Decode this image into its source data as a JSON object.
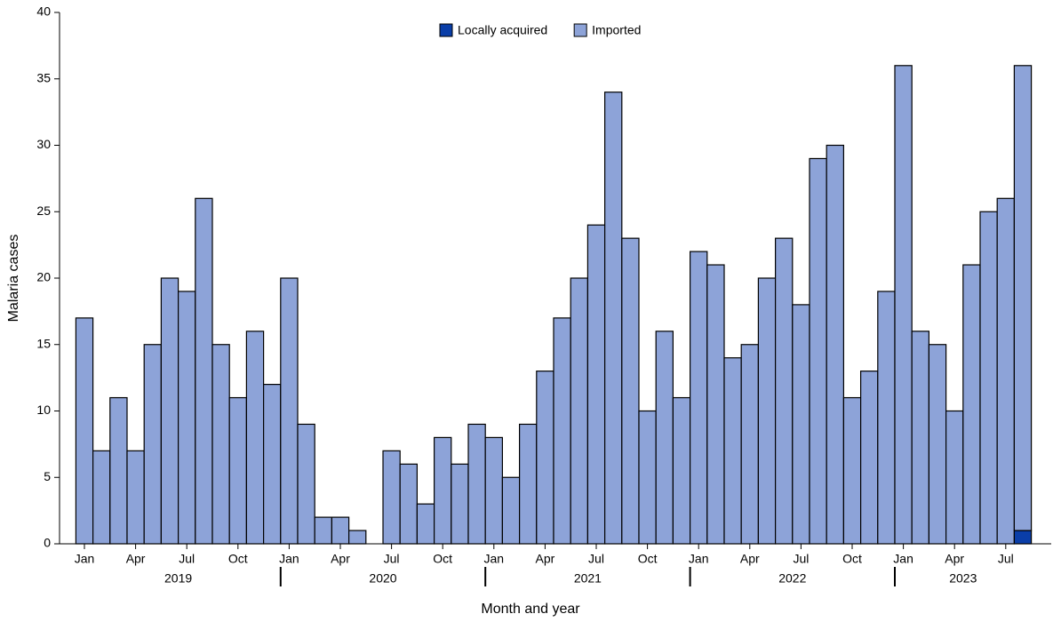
{
  "chart_data": {
    "type": "stacked-bar",
    "xlabel": "Month and year",
    "ylabel": "Malaria cases",
    "categories": [
      "Jan",
      null,
      null,
      "Apr",
      null,
      null,
      "Jul",
      null,
      null,
      "Oct",
      null,
      null,
      "Jan",
      null,
      null,
      "Apr",
      null,
      null,
      "Jul",
      null,
      null,
      "Oct",
      null,
      null,
      "Jan",
      null,
      null,
      "Apr",
      null,
      null,
      "Jul",
      null,
      null,
      "Oct",
      null,
      null,
      "Jan",
      null,
      null,
      "Apr",
      null,
      null,
      "Jul",
      null,
      null,
      "Oct",
      null,
      null,
      "Jan",
      null,
      null,
      "Apr",
      null,
      null,
      "Jul",
      null
    ],
    "years": [
      "2019",
      "2020",
      "2021",
      "2022",
      "2023"
    ],
    "series": [
      {
        "name": "Locally acquired",
        "color": "#0a3ea8",
        "values": [
          0,
          0,
          0,
          0,
          0,
          0,
          0,
          0,
          0,
          0,
          0,
          0,
          0,
          0,
          0,
          0,
          0,
          0,
          0,
          0,
          0,
          0,
          0,
          0,
          0,
          0,
          0,
          0,
          0,
          0,
          0,
          0,
          0,
          0,
          0,
          0,
          0,
          0,
          0,
          0,
          0,
          0,
          0,
          0,
          0,
          0,
          0,
          0,
          0,
          0,
          0,
          0,
          0,
          0,
          0,
          1
        ]
      },
      {
        "name": "Imported",
        "color": "#8da3d8",
        "values": [
          17,
          7,
          11,
          7,
          15,
          20,
          19,
          26,
          15,
          11,
          16,
          12,
          20,
          9,
          2,
          2,
          1,
          0,
          7,
          6,
          3,
          8,
          6,
          9,
          8,
          5,
          9,
          13,
          17,
          20,
          24,
          34,
          23,
          10,
          16,
          11,
          22,
          21,
          14,
          15,
          20,
          23,
          18,
          29,
          30,
          11,
          13,
          19,
          36,
          16,
          15,
          10,
          21,
          25,
          26,
          35
        ]
      }
    ],
    "ylim": [
      0,
      40
    ],
    "yticks": [
      0,
      5,
      10,
      15,
      20,
      25,
      30,
      35,
      40
    ],
    "legend": "top"
  }
}
